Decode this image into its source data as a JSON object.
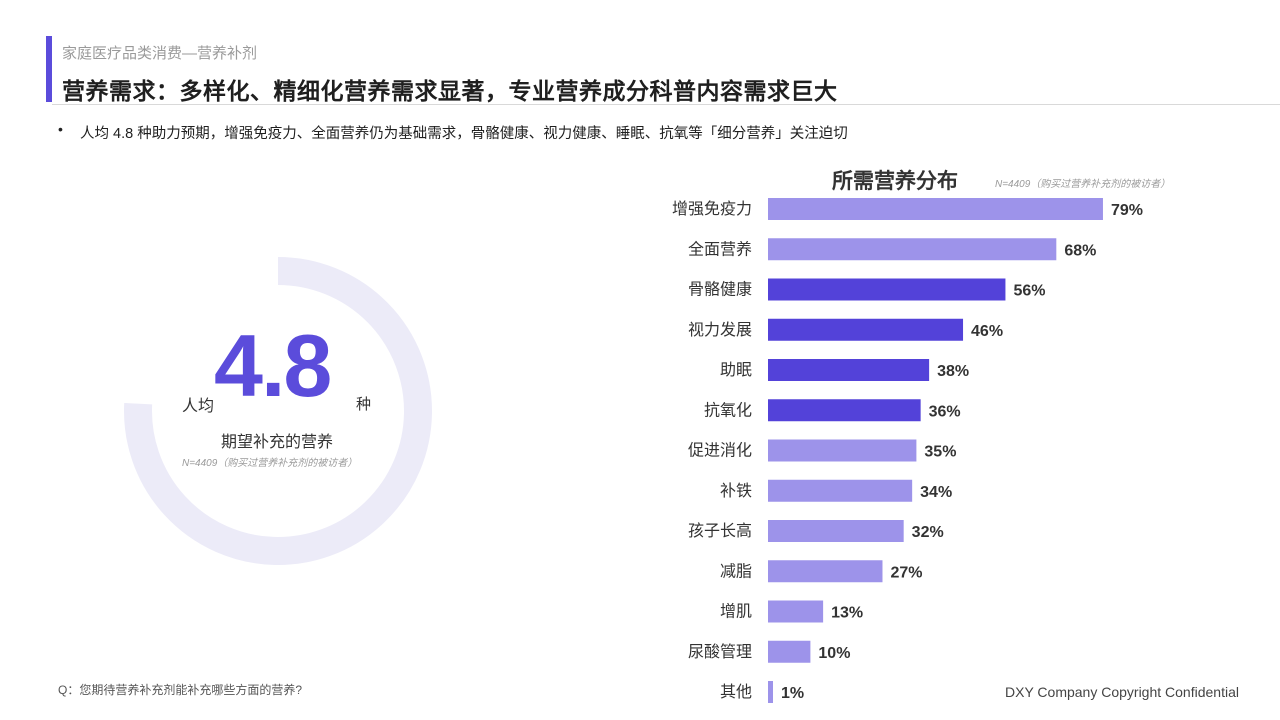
{
  "header": {
    "subtitle": "家庭医疗品类消费—营养补剂",
    "title": "营养需求：多样化、精细化营养需求显著，专业营养成分科普内容需求巨大"
  },
  "bullet": {
    "dot": "•",
    "text": "人均 4.8 种助力预期，增强免疫力、全面营养仍为基础需求，骨骼健康、视力健康、睡眠、抗氧等「细分营养」关注迫切"
  },
  "donut": {
    "value": "4.8",
    "value_num": 4.8,
    "prefix": "人均",
    "suffix": "种",
    "label": "期望补充的营养",
    "note": "N=4409（购买过营养补充剂的被访者）",
    "track_color": "#ecebf8"
  },
  "chart_data": {
    "type": "bar",
    "orientation": "horizontal",
    "title": "所需营养分布",
    "note": "N=4409（购买过营养补充剂的被访者）",
    "categories": [
      "增强免疫力",
      "全面营养",
      "骨骼健康",
      "视力发展",
      "助眠",
      "抗氧化",
      "促进消化",
      "补铁",
      "孩子长高",
      "减脂",
      "增肌",
      "尿酸管理",
      "其他"
    ],
    "values": [
      79,
      68,
      56,
      46,
      38,
      36,
      35,
      34,
      32,
      27,
      13,
      10,
      1
    ],
    "value_labels": [
      "79%",
      "68%",
      "56%",
      "46%",
      "38%",
      "36%",
      "35%",
      "34%",
      "32%",
      "27%",
      "13%",
      "10%",
      "1%"
    ],
    "highlighted": [
      false,
      false,
      true,
      true,
      true,
      true,
      false,
      false,
      false,
      false,
      false,
      false,
      false
    ],
    "colors": {
      "normal": "#9d93ea",
      "highlight": "#5342d9"
    },
    "xlim": [
      0,
      100
    ],
    "grid": false,
    "legend": "none"
  },
  "footer": {
    "question": "Q：您期待营养补充剂能补充哪些方面的营养?",
    "copyright": "DXY Company Copyright Confidential"
  }
}
